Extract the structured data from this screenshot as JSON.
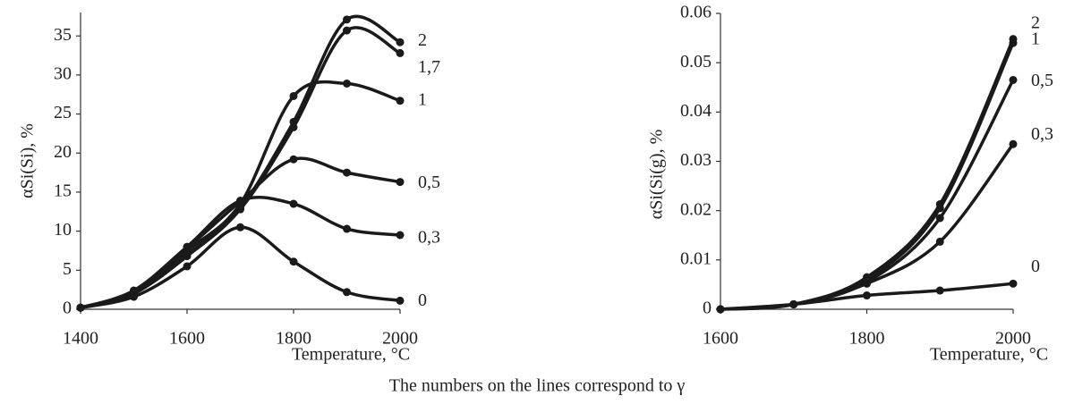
{
  "chart_data": [
    {
      "type": "line",
      "y_label": "αSi(Si), %",
      "x_label": "Temperature, °C",
      "x": [
        1400,
        1500,
        1600,
        1700,
        1800,
        1900,
        2000
      ],
      "xlim": [
        1400,
        2000
      ],
      "xticks": [
        1400,
        1600,
        1800,
        2000
      ],
      "ylim": [
        0,
        38
      ],
      "yticks": [
        0,
        5,
        10,
        15,
        20,
        25,
        30,
        35
      ],
      "series": [
        {
          "name": "2",
          "color": "#1a1a1a",
          "values": [
            0.2,
            2,
            7,
            13,
            24,
            37.1,
            34.2
          ]
        },
        {
          "name": "1,7",
          "color": "#1a1a1a",
          "values": [
            0.2,
            2,
            6.8,
            12.8,
            23.3,
            35.7,
            32.8
          ]
        },
        {
          "name": "1",
          "color": "#1a1a1a",
          "values": [
            0.2,
            2.2,
            7.5,
            13.5,
            27.3,
            28.9,
            26.7
          ]
        },
        {
          "name": "0,5",
          "color": "#1a1a1a",
          "values": [
            0.2,
            2.3,
            7.8,
            13.8,
            19.2,
            17.5,
            16.3
          ]
        },
        {
          "name": "0,3",
          "color": "#1a1a1a",
          "values": [
            0.2,
            2.4,
            8,
            13.9,
            13.5,
            10.3,
            9.5
          ]
        },
        {
          "name": "0",
          "color": "#1a1a1a",
          "values": [
            0.2,
            1.6,
            5.5,
            10.5,
            6.1,
            2.2,
            1.1
          ]
        }
      ]
    },
    {
      "type": "line",
      "y_label": "αSi(Si(g), %",
      "x_label": "Temperature, °C",
      "x": [
        1600,
        1700,
        1800,
        1900,
        2000
      ],
      "xlim": [
        1600,
        2000
      ],
      "xticks": [
        1600,
        1800,
        2000
      ],
      "ylim": [
        0,
        0.06
      ],
      "yticks": [
        0,
        0.01,
        0.02,
        0.03,
        0.04,
        0.05,
        0.06
      ],
      "series": [
        {
          "name": "2",
          "color": "#1a1a1a",
          "values": [
            0,
            0.001,
            0.0065,
            0.0213,
            0.0548
          ]
        },
        {
          "name": "1",
          "color": "#1a1a1a",
          "values": [
            0,
            0.001,
            0.006,
            0.0205,
            0.054
          ]
        },
        {
          "name": "0,5",
          "color": "#1a1a1a",
          "values": [
            0,
            0.001,
            0.0055,
            0.0185,
            0.0465
          ]
        },
        {
          "name": "0,3",
          "color": "#1a1a1a",
          "values": [
            0,
            0.001,
            0.0052,
            0.0137,
            0.0335
          ]
        },
        {
          "name": "0",
          "color": "#1a1a1a",
          "values": [
            0,
            0.001,
            0.0028,
            0.0038,
            0.0052
          ]
        }
      ]
    }
  ],
  "caption": "The numbers on the lines correspond to γ"
}
